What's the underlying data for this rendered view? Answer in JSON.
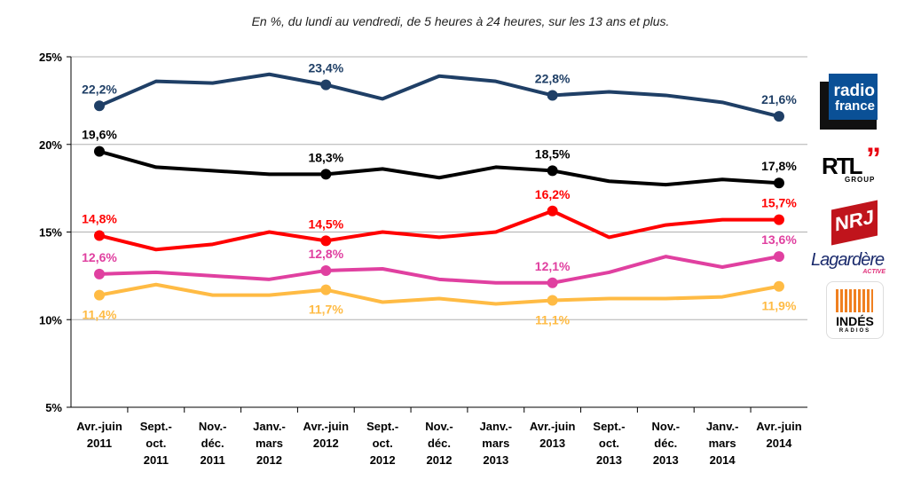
{
  "chart_data": {
    "type": "line",
    "title": "En  %, du lundi au vendredi, de 5 heures à 24 heures, sur les 13 ans et plus.",
    "categories": [
      [
        "Avr.-juin",
        "2011"
      ],
      [
        "Sept.-",
        "oct.",
        "2011"
      ],
      [
        "Nov.-",
        "déc.",
        "2011"
      ],
      [
        "Janv.-",
        "mars",
        "2012"
      ],
      [
        "Avr.-juin",
        "2012"
      ],
      [
        "Sept.-",
        "oct.",
        "2012"
      ],
      [
        "Nov.-",
        "déc.",
        "2012"
      ],
      [
        "Janv.-",
        "mars",
        "2013"
      ],
      [
        "Avr.-juin",
        "2013"
      ],
      [
        "Sept.-",
        "oct.",
        "2013"
      ],
      [
        "Nov.-",
        "déc.",
        "2013"
      ],
      [
        "Janv.-",
        "mars",
        "2014"
      ],
      [
        "Avr.-juin",
        "2014"
      ]
    ],
    "ylim": [
      5,
      25
    ],
    "yticks": [
      "5%",
      "10%",
      "15%",
      "20%",
      "25%"
    ],
    "grid": true,
    "labeled_points": [
      0,
      4,
      8,
      12
    ],
    "series": [
      {
        "logo": "radio france",
        "color": "#1f3f66",
        "label_pos": "above",
        "values": [
          22.2,
          23.6,
          23.5,
          24.0,
          23.4,
          22.6,
          23.9,
          23.6,
          22.8,
          23.0,
          22.8,
          22.4,
          21.6
        ],
        "labels": [
          "22,2%",
          "23,4%",
          "22,8%",
          "21,6%"
        ]
      },
      {
        "logo": "RTL GROUP",
        "color": "#000000",
        "label_pos": "above",
        "values": [
          19.6,
          18.7,
          18.5,
          18.3,
          18.3,
          18.6,
          18.1,
          18.7,
          18.5,
          17.9,
          17.7,
          18.0,
          17.8
        ],
        "labels": [
          "19,6%",
          "18,3%",
          "18,5%",
          "17,8%"
        ]
      },
      {
        "logo": "NRJ GROUP",
        "color": "#ff0000",
        "label_pos": "above",
        "values": [
          14.8,
          14.0,
          14.3,
          15.0,
          14.5,
          15.0,
          14.7,
          15.0,
          16.2,
          14.7,
          15.4,
          15.7,
          15.7
        ],
        "labels": [
          "14,8%",
          "14,5%",
          "16,2%",
          "15,7%"
        ]
      },
      {
        "logo": "Lagardère ACTIVE",
        "color": "#e040a0",
        "label_pos": "above",
        "values": [
          12.6,
          12.7,
          12.5,
          12.3,
          12.8,
          12.9,
          12.3,
          12.1,
          12.1,
          12.7,
          13.6,
          13.0,
          13.6
        ],
        "labels": [
          "12,6%",
          "12,8%",
          "12,1%",
          "13,6%"
        ]
      },
      {
        "logo": "LES INDÉS RADIOS",
        "color": "#ffbb44",
        "label_pos": "below",
        "values": [
          11.4,
          12.0,
          11.4,
          11.4,
          11.7,
          11.0,
          11.2,
          10.9,
          11.1,
          11.2,
          11.2,
          11.3,
          11.9
        ],
        "labels": [
          "11,4%",
          "11,7%",
          "11,1%",
          "11,9%"
        ]
      }
    ]
  }
}
